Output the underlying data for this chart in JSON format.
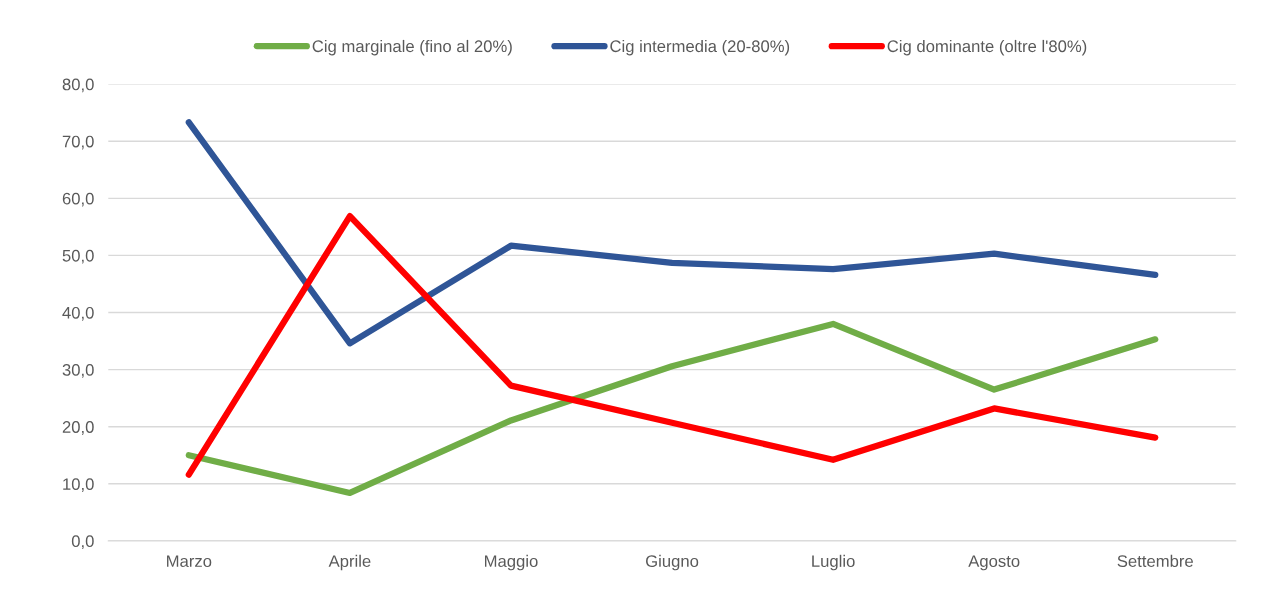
{
  "chart_data": {
    "type": "line",
    "categories": [
      "Marzo",
      "Aprile",
      "Maggio",
      "Giugno",
      "Luglio",
      "Agosto",
      "Settembre"
    ],
    "series": [
      {
        "name": "Cig marginale (fino al 20%)",
        "color": "#70ad47",
        "values": [
          15.0,
          8.4,
          21.1,
          30.6,
          38.0,
          26.5,
          35.3
        ]
      },
      {
        "name": "Cig intermedia (20-80%)",
        "color": "#2f5597",
        "values": [
          73.3,
          34.6,
          51.7,
          48.7,
          47.6,
          50.3,
          46.6
        ]
      },
      {
        "name": "Cig dominante (oltre l'80%)",
        "color": "#ff0000",
        "values": [
          11.6,
          56.9,
          27.2,
          20.7,
          14.2,
          23.2,
          18.1
        ]
      }
    ],
    "ylim": [
      0,
      80
    ],
    "yticks": [
      {
        "value": 0,
        "label": "0,0"
      },
      {
        "value": 10,
        "label": "10,0"
      },
      {
        "value": 20,
        "label": "20,0"
      },
      {
        "value": 30,
        "label": "30,0"
      },
      {
        "value": 40,
        "label": "40,0"
      },
      {
        "value": 50,
        "label": "50,0"
      },
      {
        "value": 60,
        "label": "60,0"
      },
      {
        "value": 70,
        "label": "70,0"
      },
      {
        "value": 80,
        "label": "80,0"
      }
    ],
    "grid": "y",
    "legend": "top",
    "marker": "none",
    "line_style": "solid"
  }
}
